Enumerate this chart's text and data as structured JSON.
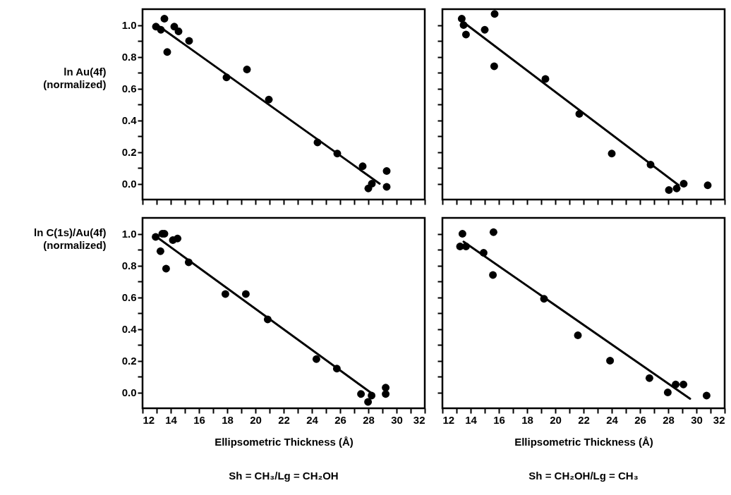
{
  "chart_data": [
    {
      "type": "scatter",
      "ylabel": "ln Au(4f)\n(normalized)",
      "tick_labels": "y",
      "xlim": [
        12,
        32
      ],
      "ylim": [
        -0.1,
        1.1
      ],
      "xticks": [
        {
          "value": 12,
          "label": null
        },
        {
          "value": 13,
          "label": null
        },
        {
          "value": 14,
          "label": null
        },
        {
          "value": 15,
          "label": null
        },
        {
          "value": 16,
          "label": null
        },
        {
          "value": 17,
          "label": null
        },
        {
          "value": 18,
          "label": null
        },
        {
          "value": 19,
          "label": null
        },
        {
          "value": 20,
          "label": null
        },
        {
          "value": 21,
          "label": null
        },
        {
          "value": 22,
          "label": null
        },
        {
          "value": 23,
          "label": null
        },
        {
          "value": 24,
          "label": null
        },
        {
          "value": 25,
          "label": null
        },
        {
          "value": 26,
          "label": null
        },
        {
          "value": 27,
          "label": null
        },
        {
          "value": 28,
          "label": null
        },
        {
          "value": 29,
          "label": null
        },
        {
          "value": 30,
          "label": null
        },
        {
          "value": 31,
          "label": null
        },
        {
          "value": 32,
          "label": null
        }
      ],
      "yticks": [
        {
          "value": 0,
          "label": "0.0"
        },
        {
          "value": 0.1,
          "label": null
        },
        {
          "value": 0.2,
          "label": "0.2"
        },
        {
          "value": 0.3,
          "label": null
        },
        {
          "value": 0.4,
          "label": "0.4"
        },
        {
          "value": 0.5,
          "label": null
        },
        {
          "value": 0.6,
          "label": "0.6"
        },
        {
          "value": 0.7,
          "label": null
        },
        {
          "value": 0.8,
          "label": "0.8"
        },
        {
          "value": 0.9,
          "label": null
        },
        {
          "value": 1,
          "label": "1.0"
        }
      ],
      "series": [
        {
          "type": "scatter",
          "marker": "circle",
          "color": "#000000",
          "x": [
            12.95,
            13.3,
            13.55,
            13.75,
            14.25,
            14.55,
            15.3,
            17.95,
            19.4,
            20.95,
            24.4,
            25.8,
            27.6,
            28.0,
            28.25,
            29.3,
            29.3
          ],
          "values": [
            0.99,
            0.97,
            1.04,
            0.83,
            0.99,
            0.96,
            0.9,
            0.67,
            0.72,
            0.53,
            0.26,
            0.19,
            0.11,
            -0.03,
            0.0,
            0.08,
            -0.02
          ]
        },
        {
          "type": "line",
          "marker": "none",
          "color": "#000000",
          "x": [
            13.2,
            28.8
          ],
          "values": [
            0.99,
            0.0
          ]
        }
      ]
    },
    {
      "type": "scatter",
      "tick_labels": false,
      "xlim": [
        12,
        32
      ],
      "ylim": [
        -0.1,
        1.1
      ],
      "xticks": [
        {
          "value": 12,
          "label": null
        },
        {
          "value": 13,
          "label": null
        },
        {
          "value": 14,
          "label": null
        },
        {
          "value": 15,
          "label": null
        },
        {
          "value": 16,
          "label": null
        },
        {
          "value": 17,
          "label": null
        },
        {
          "value": 18,
          "label": null
        },
        {
          "value": 19,
          "label": null
        },
        {
          "value": 20,
          "label": null
        },
        {
          "value": 21,
          "label": null
        },
        {
          "value": 22,
          "label": null
        },
        {
          "value": 23,
          "label": null
        },
        {
          "value": 24,
          "label": null
        },
        {
          "value": 25,
          "label": null
        },
        {
          "value": 26,
          "label": null
        },
        {
          "value": 27,
          "label": null
        },
        {
          "value": 28,
          "label": null
        },
        {
          "value": 29,
          "label": null
        },
        {
          "value": 30,
          "label": null
        },
        {
          "value": 31,
          "label": null
        },
        {
          "value": 32,
          "label": null
        }
      ],
      "yticks": [
        {
          "value": 0,
          "label": null
        },
        {
          "value": 0.1,
          "label": null
        },
        {
          "value": 0.2,
          "label": null
        },
        {
          "value": 0.3,
          "label": null
        },
        {
          "value": 0.4,
          "label": null
        },
        {
          "value": 0.5,
          "label": null
        },
        {
          "value": 0.6,
          "label": null
        },
        {
          "value": 0.7,
          "label": null
        },
        {
          "value": 0.8,
          "label": null
        },
        {
          "value": 0.9,
          "label": null
        },
        {
          "value": 1,
          "label": null
        }
      ],
      "series": [
        {
          "type": "scatter",
          "marker": "circle",
          "color": "#000000",
          "x": [
            13.37,
            13.5,
            13.67,
            15.0,
            15.7,
            15.67,
            19.3,
            21.7,
            24.0,
            26.75,
            28.05,
            28.6,
            29.1,
            30.8
          ],
          "values": [
            1.04,
            1.0,
            0.94,
            0.97,
            1.07,
            0.74,
            0.66,
            0.44,
            0.19,
            0.12,
            -0.04,
            -0.03,
            0.0,
            -0.01
          ]
        },
        {
          "type": "line",
          "marker": "none",
          "color": "#000000",
          "x": [
            13.6,
            28.75
          ],
          "values": [
            1.01,
            -0.01
          ]
        }
      ]
    },
    {
      "type": "scatter",
      "ylabel": "ln C(1s)/Au(4f)\n(normalized)",
      "xlabel": "Ellipsometric Thickness (Å)",
      "annotations": [
        "Sh = CH₃/Lg = CH₂OH"
      ],
      "xlim": [
        12,
        32
      ],
      "ylim": [
        -0.1,
        1.1
      ],
      "xticks": [
        12,
        {
          "value": 13,
          "label": null
        },
        14,
        {
          "value": 15,
          "label": null
        },
        16,
        {
          "value": 17,
          "label": null
        },
        18,
        {
          "value": 19,
          "label": null
        },
        20,
        {
          "value": 21,
          "label": null
        },
        22,
        {
          "value": 23,
          "label": null
        },
        24,
        {
          "value": 25,
          "label": null
        },
        26,
        {
          "value": 27,
          "label": null
        },
        28,
        {
          "value": 29,
          "label": null
        },
        30,
        {
          "value": 31,
          "label": null
        },
        32
      ],
      "yticks": [
        {
          "value": 0,
          "label": "0.0"
        },
        {
          "value": 0.1,
          "label": null
        },
        {
          "value": 0.2,
          "label": "0.2"
        },
        {
          "value": 0.3,
          "label": null
        },
        {
          "value": 0.4,
          "label": "0.4"
        },
        {
          "value": 0.5,
          "label": null
        },
        {
          "value": 0.6,
          "label": "0.6"
        },
        {
          "value": 0.7,
          "label": null
        },
        {
          "value": 0.8,
          "label": "0.8"
        },
        {
          "value": 0.9,
          "label": null
        },
        {
          "value": 1,
          "label": "1.0"
        }
      ],
      "series": [
        {
          "type": "scatter",
          "marker": "circle",
          "color": "#000000",
          "x": [
            12.93,
            13.27,
            13.4,
            13.55,
            13.67,
            14.15,
            14.48,
            15.27,
            17.87,
            19.32,
            20.87,
            24.32,
            25.77,
            27.48,
            27.98,
            28.23,
            29.23,
            29.23
          ],
          "values": [
            0.98,
            0.89,
            1.0,
            1.0,
            0.78,
            0.96,
            0.97,
            0.82,
            0.62,
            0.62,
            0.46,
            0.21,
            0.15,
            -0.01,
            -0.06,
            -0.02,
            0.03,
            -0.01
          ]
        },
        {
          "type": "line",
          "marker": "none",
          "color": "#000000",
          "x": [
            13.0,
            28.15
          ],
          "values": [
            0.98,
            0.0
          ]
        }
      ]
    },
    {
      "type": "scatter",
      "xlabel": "Ellipsometric Thickness (Å)",
      "tick_labels": "x",
      "annotations": [
        "Sh = CH₂OH/Lg = CH₃"
      ],
      "xlim": [
        12,
        32
      ],
      "ylim": [
        -0.1,
        1.1
      ],
      "xticks": [
        12,
        {
          "value": 13,
          "label": null
        },
        14,
        {
          "value": 15,
          "label": null
        },
        16,
        {
          "value": 17,
          "label": null
        },
        18,
        {
          "value": 19,
          "label": null
        },
        20,
        {
          "value": 21,
          "label": null
        },
        22,
        {
          "value": 23,
          "label": null
        },
        24,
        {
          "value": 25,
          "label": null
        },
        26,
        {
          "value": 27,
          "label": null
        },
        28,
        {
          "value": 29,
          "label": null
        },
        30,
        {
          "value": 31,
          "label": null
        },
        32
      ],
      "yticks": [
        {
          "value": 0,
          "label": null
        },
        {
          "value": 0.1,
          "label": null
        },
        {
          "value": 0.2,
          "label": null
        },
        {
          "value": 0.3,
          "label": null
        },
        {
          "value": 0.4,
          "label": null
        },
        {
          "value": 0.5,
          "label": null
        },
        {
          "value": 0.6,
          "label": null
        },
        {
          "value": 0.7,
          "label": null
        },
        {
          "value": 0.8,
          "label": null
        },
        {
          "value": 0.9,
          "label": null
        },
        {
          "value": 1,
          "label": null
        }
      ],
      "series": [
        {
          "type": "scatter",
          "marker": "circle",
          "color": "#000000",
          "x": [
            13.25,
            13.42,
            13.67,
            14.92,
            15.62,
            15.58,
            19.2,
            21.6,
            23.88,
            26.67,
            27.97,
            28.53,
            29.08,
            30.72
          ],
          "values": [
            0.92,
            1.0,
            0.92,
            0.88,
            1.01,
            0.74,
            0.59,
            0.36,
            0.2,
            0.09,
            0.0,
            0.05,
            0.05,
            -0.02
          ]
        },
        {
          "type": "line",
          "marker": "none",
          "color": "#000000",
          "x": [
            13.5,
            29.55
          ],
          "values": [
            0.95,
            -0.04
          ]
        }
      ]
    }
  ]
}
